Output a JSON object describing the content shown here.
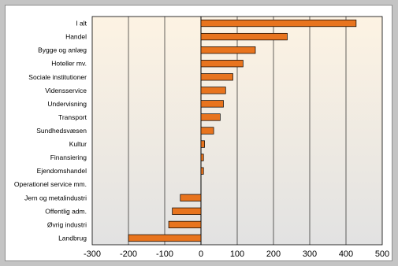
{
  "chart_data": {
    "type": "bar",
    "orientation": "horizontal",
    "title": "",
    "xlabel": "",
    "ylabel": "",
    "categories": [
      "I alt",
      "Handel",
      "Bygge og anlæg",
      "Hoteller mv.",
      "Sociale institutioner",
      "Vidensservice",
      "Undervisning",
      "Transport",
      "Sundhedsvæsen",
      "Kultur",
      "Finansiering",
      "Ejendomshandel",
      "Operationel service mm.",
      "Jern og metalindustri",
      "Offentlig adm.",
      "Øvrig industri",
      "Landbrug"
    ],
    "values": [
      428,
      238,
      150,
      116,
      88,
      68,
      62,
      53,
      35,
      10,
      7,
      7,
      0,
      -57,
      -79,
      -89,
      -200
    ],
    "xlim": [
      -300,
      500
    ],
    "xticks": [
      "-300",
      "-200",
      "-100",
      "0",
      "100",
      "200",
      "300",
      "400",
      "500"
    ],
    "grid": "vertical",
    "legend": "none",
    "colors": {
      "bar_fill": "#e8741e",
      "bar_stroke": "#000000",
      "plot_gradient_top": "#fdf3e3",
      "plot_gradient_bottom": "#e2e2e2",
      "frame": "#c4c4c4"
    }
  }
}
